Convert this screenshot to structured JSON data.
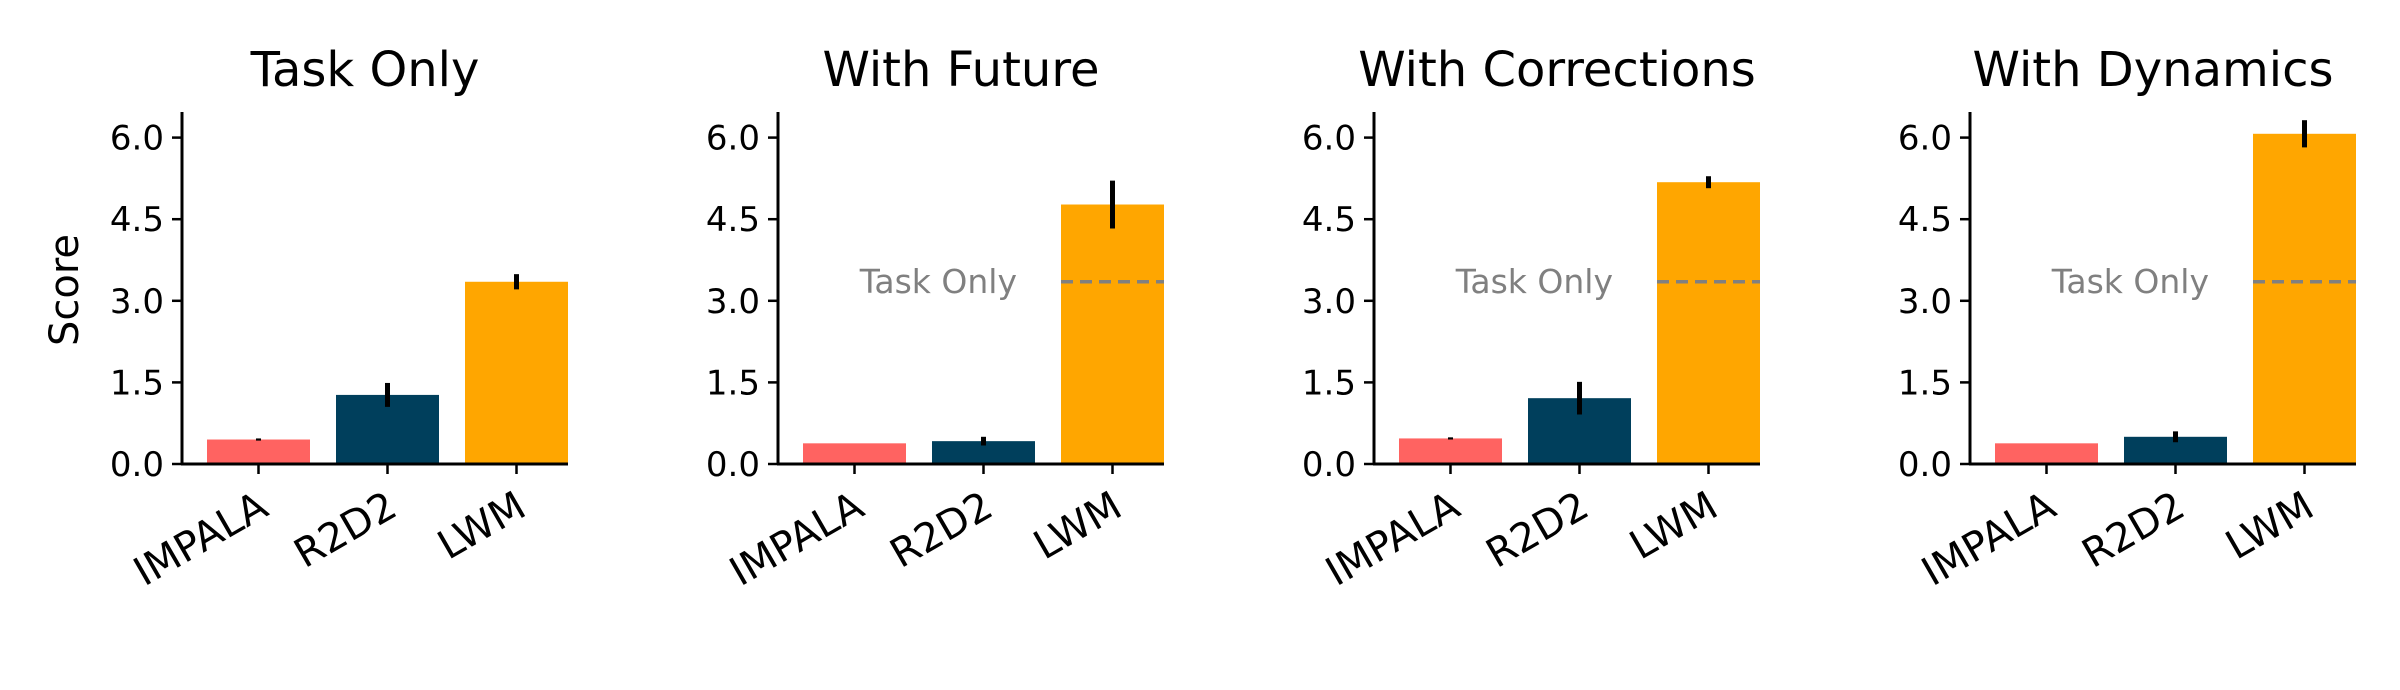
{
  "chart_data": [
    {
      "type": "bar",
      "title": "Task Only",
      "ylabel": "Score",
      "xlabel": "",
      "ylim": [
        0,
        6.5
      ],
      "yticks": [
        "0.0",
        "1.5",
        "3.0",
        "4.5",
        "6.0"
      ],
      "categories": [
        "IMPALA",
        "R2D2",
        "LWM"
      ],
      "values": [
        0.45,
        1.27,
        3.35
      ],
      "errors": [
        0.02,
        0.22,
        0.14
      ],
      "colors": [
        "#ff6361",
        "#003f5c",
        "#ffa600"
      ],
      "reference": null
    },
    {
      "type": "bar",
      "title": "With Future",
      "ylabel": "",
      "xlabel": "",
      "ylim": [
        0,
        6.5
      ],
      "yticks": [
        "0.0",
        "1.5",
        "3.0",
        "4.5",
        "6.0"
      ],
      "categories": [
        "IMPALA",
        "R2D2",
        "LWM"
      ],
      "values": [
        0.38,
        0.42,
        4.77
      ],
      "errors": [
        0.0,
        0.08,
        0.44
      ],
      "colors": [
        "#ff6361",
        "#003f5c",
        "#ffa600"
      ],
      "reference": {
        "label": "Task Only",
        "value": 3.35,
        "color": "#808080"
      }
    },
    {
      "type": "bar",
      "title": "With Corrections",
      "ylabel": "",
      "xlabel": "",
      "ylim": [
        0,
        6.5
      ],
      "yticks": [
        "0.0",
        "1.5",
        "3.0",
        "4.5",
        "6.0"
      ],
      "categories": [
        "IMPALA",
        "R2D2",
        "LWM"
      ],
      "values": [
        0.47,
        1.21,
        5.18
      ],
      "errors": [
        0.02,
        0.3,
        0.11
      ],
      "colors": [
        "#ff6361",
        "#003f5c",
        "#ffa600"
      ],
      "reference": {
        "label": "Task Only",
        "value": 3.35,
        "color": "#808080"
      }
    },
    {
      "type": "bar",
      "title": "With Dynamics",
      "ylabel": "",
      "xlabel": "",
      "ylim": [
        0,
        6.5
      ],
      "yticks": [
        "0.0",
        "1.5",
        "3.0",
        "4.5",
        "6.0"
      ],
      "categories": [
        "IMPALA",
        "R2D2",
        "LWM"
      ],
      "values": [
        0.38,
        0.5,
        6.07
      ],
      "errors": [
        0.0,
        0.1,
        0.25
      ],
      "colors": [
        "#ff6361",
        "#003f5c",
        "#ffa600"
      ],
      "reference": {
        "label": "Task Only",
        "value": 3.35,
        "color": "#808080"
      }
    }
  ]
}
